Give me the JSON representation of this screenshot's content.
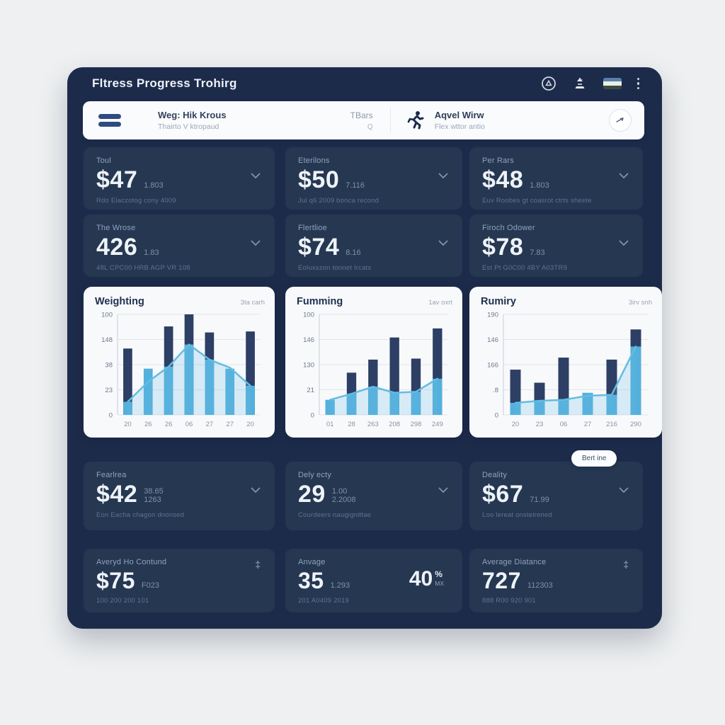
{
  "colors": {
    "page_bg": "#eef0f1",
    "panel_bg": "#1d2b4b",
    "card_bg": "#263751",
    "white_card_bg": "#f8f9fb",
    "accent_light_blue": "#54b0dc",
    "accent_dark_bar": "#2d3f64",
    "line_blue": "#64bce2",
    "icon_blue": "#2e4c82"
  },
  "header": {
    "title": "Fltress Progress Trohirg"
  },
  "toolbar": {
    "workout_title": "Weg: Hik Krous",
    "workout_subtitle": "Thairto V ktropaud",
    "tbars_label": "TBars",
    "tbars_sub": "Q",
    "activity_title": "Aqvel Wirw",
    "activity_subtitle": "Flex wttor antio"
  },
  "pill": {
    "label": "Bert ine"
  },
  "stat_cards": [
    {
      "label": "Toul",
      "value": "$47",
      "sub": "1.803",
      "caption": "Rdo Elaczotog cony 4009"
    },
    {
      "label": "Eterilons",
      "value": "$50",
      "sub": "7.116",
      "caption": "Jul q6 2009 bonca recond"
    },
    {
      "label": "Per Rars",
      "value": "$48",
      "sub": "1.803",
      "caption": "Euv Roobes gt coasrot ctrts sheete"
    },
    {
      "label": "The Wrose",
      "value": "426",
      "sub": "1.83",
      "caption": "48L CPC00 HRB AGP VR 108"
    },
    {
      "label": "Flertlioe",
      "value": "$74",
      "sub": "8.16",
      "caption": "Eoluxxzon tonnet Ircats"
    },
    {
      "label": "Firoch Odower",
      "value": "$78",
      "sub": "7.83",
      "caption": "Est Pt G0C00 4BY A03TR9"
    },
    {
      "label": "Fearlrea",
      "value": "$42",
      "sub": "38.65",
      "sub2": "1263",
      "caption": "Eon Eacha chagon dnonsed"
    },
    {
      "label": "Dely ecty",
      "value": "29",
      "sub": "1.00",
      "sub2": "2.2008",
      "caption": "Courdeers naugignittae"
    },
    {
      "label": "Deality",
      "value": "$67",
      "sub": "71.99",
      "caption": "Loo lereat onsteirened"
    },
    {
      "label": "Averyd Ho Contund",
      "value": "$75",
      "sub": "F023",
      "caption": "100 200 200 101"
    },
    {
      "label": "Anvage",
      "value": "35",
      "sub": "1.293",
      "caption": "201 A0409 2019",
      "extra_value": "40",
      "extra_unit": "%",
      "extra_unit2": "MX"
    },
    {
      "label": "Average Diatance",
      "value": "727",
      "sub": "112303",
      "caption": "888 R00 920 901"
    }
  ],
  "chart_data": [
    {
      "type": "bar",
      "title": "Weighting",
      "range_label": "3ta carh",
      "y_ticks": [
        "100",
        "148",
        "38",
        "23",
        "0"
      ],
      "ylim": [
        0,
        100
      ],
      "grid": true,
      "categories": [
        "20",
        "26",
        "26",
        "06",
        "27",
        "27",
        "20"
      ],
      "series": [
        {
          "name": "bars",
          "values": [
            66,
            46,
            88,
            100,
            82,
            46,
            83
          ],
          "colors": [
            "dark",
            "light",
            "dark",
            "dark",
            "dark",
            "light",
            "dark"
          ]
        },
        {
          "name": "line",
          "values": [
            13,
            33,
            48,
            70,
            55,
            47,
            29
          ]
        }
      ]
    },
    {
      "type": "bar",
      "title": "Fumming",
      "range_label": "1av oxrt",
      "y_ticks": [
        "100",
        "146",
        "130",
        "21",
        "0"
      ],
      "ylim": [
        0,
        100
      ],
      "grid": true,
      "categories": [
        "01",
        "28",
        "263",
        "208",
        "298",
        "249"
      ],
      "series": [
        {
          "name": "bars",
          "values": [
            15,
            42,
            55,
            77,
            56,
            86
          ],
          "colors": [
            "light",
            "dark",
            "dark",
            "dark",
            "dark",
            "dark"
          ]
        },
        {
          "name": "line",
          "values": [
            15,
            21,
            28,
            22,
            23,
            36
          ]
        }
      ]
    },
    {
      "type": "bar",
      "title": "Rumiry",
      "range_label": "3irv snh",
      "y_ticks": [
        "190",
        "146",
        "166",
        ".8",
        "0"
      ],
      "ylim": [
        0,
        100
      ],
      "grid": true,
      "categories": [
        "20",
        "23",
        "06",
        "27",
        "216",
        "290"
      ],
      "series": [
        {
          "name": "bars",
          "values": [
            45,
            32,
            57,
            22,
            55,
            85
          ],
          "colors": [
            "dark",
            "dark",
            "dark",
            "light",
            "dark",
            "dark"
          ]
        },
        {
          "name": "line",
          "values": [
            12,
            14,
            15,
            19,
            20,
            68
          ]
        }
      ]
    }
  ]
}
